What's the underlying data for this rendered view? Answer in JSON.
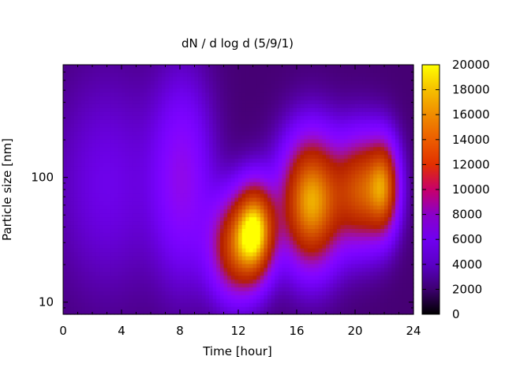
{
  "chart_data": {
    "type": "heatmap",
    "title": "dN / d log d (5/9/1)",
    "xlabel": "Time [hour]",
    "ylabel": "Particle size [nm]",
    "xlim": [
      0,
      24
    ],
    "ylim": [
      8,
      800
    ],
    "y_scale": "log",
    "x_ticks": [
      0,
      4,
      8,
      12,
      16,
      20,
      24
    ],
    "x_tick_labels": [
      "0",
      "4",
      "8",
      "12",
      "16",
      "20",
      "24"
    ],
    "y_tick_values": [
      10,
      100
    ],
    "y_tick_labels": [
      "10",
      "100"
    ],
    "colorbar": {
      "range": [
        0,
        20000
      ],
      "ticks": [
        0,
        2000,
        4000,
        6000,
        8000,
        10000,
        12000,
        14000,
        16000,
        18000,
        20000
      ],
      "tick_labels": [
        "0",
        "2000",
        "4000",
        "6000",
        "8000",
        "10000",
        "12000",
        "14000",
        "16000",
        "18000",
        "20000"
      ],
      "palette": "gnuplot"
    },
    "background_level": 1500,
    "features": [
      {
        "t": 8.2,
        "d": 100,
        "st": 1.4,
        "sd": 0.55,
        "v": 4500
      },
      {
        "t": 3.0,
        "d": 90,
        "st": 2.5,
        "sd": 0.6,
        "v": 2200
      },
      {
        "t": 11.8,
        "d": 28,
        "st": 1.2,
        "sd": 0.28,
        "v": 10500
      },
      {
        "t": 13.2,
        "d": 38,
        "st": 0.9,
        "sd": 0.25,
        "v": 15000
      },
      {
        "t": 17.0,
        "d": 65,
        "st": 1.4,
        "sd": 0.35,
        "v": 16000
      },
      {
        "t": 20.5,
        "d": 80,
        "st": 1.2,
        "sd": 0.3,
        "v": 11500
      },
      {
        "t": 22.0,
        "d": 85,
        "st": 0.7,
        "sd": 0.25,
        "v": 10000
      }
    ],
    "grid": false,
    "legend": "colorbar-right"
  }
}
